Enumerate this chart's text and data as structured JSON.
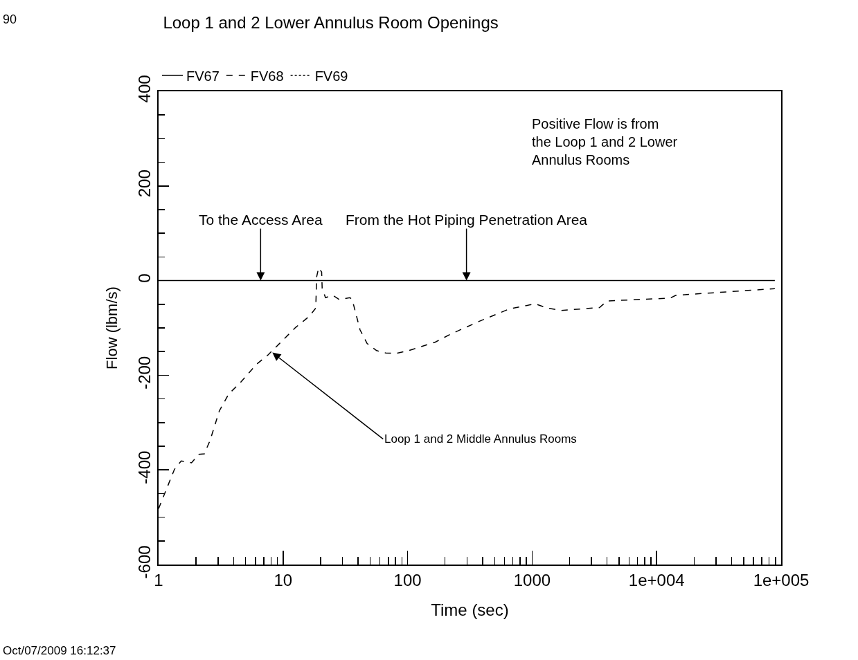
{
  "chart_data": {
    "type": "line",
    "title": "Loop 1 and 2 Lower Annulus Room Openings",
    "xlabel": "Time (sec)",
    "ylabel": "Flow (lbm/s)",
    "log": "x",
    "xlim": [
      1,
      100000
    ],
    "xticks": [
      1,
      10,
      100,
      1000,
      {
        "value": 10000,
        "label": "1e+004"
      },
      {
        "value": 100000,
        "label": "1e+005"
      }
    ],
    "ylim": [
      -600,
      400
    ],
    "yticks": [
      -600,
      -400,
      -200,
      0,
      200,
      400
    ],
    "grid": false,
    "legend": "top left",
    "marker": "none",
    "series": [
      {
        "name": "FV67",
        "color": "#000000",
        "line_style": "solid",
        "x": [
          1,
          89000
        ],
        "values": [
          0,
          0
        ]
      },
      {
        "name": "FV68",
        "color": "#000000",
        "line_style": "dashed",
        "x": [
          1,
          1.34,
          1.52,
          1.84,
          2.1,
          2.33,
          2.59,
          3.08,
          3.65,
          4.52,
          6.1,
          7.5,
          9.78,
          12.6,
          16.3,
          18.3,
          18.6,
          19.3,
          20.4,
          20.6,
          21.9,
          25,
          28.3,
          34.4,
          35.9,
          41.5,
          47.3,
          56.4,
          66.8,
          80.4,
          102,
          167,
          218,
          377,
          654,
          1062,
          1318,
          1722,
          3480,
          3990,
          12810,
          14300,
          89000
        ],
        "values": [
          -482,
          -399,
          -381,
          -385,
          -367,
          -366,
          -338,
          -275,
          -240,
          -216,
          -177,
          -158,
          -128,
          -99,
          -75,
          -58,
          8,
          27,
          18,
          -16,
          -36,
          -31,
          -40,
          -36,
          -40,
          -104,
          -133,
          -148,
          -153,
          -154,
          -148,
          -130,
          -114,
          -86,
          -60,
          -49,
          -58,
          -63,
          -57,
          -43,
          -37,
          -31,
          -17
        ]
      },
      {
        "name": "FV69",
        "color": "#000000",
        "line_style": "dotted"
      }
    ],
    "annotations": [
      "90",
      "Positive Flow is from\nthe Loop 1 and 2 Lower\nAnnulus Rooms",
      {
        "text": "To the Access Area",
        "x": 6.6,
        "y": 0
      },
      {
        "text": "From the Hot Piping Penetration Area",
        "x": 297,
        "y": 0
      },
      {
        "text": "Loop 1 and 2 Middle Annulus Rooms",
        "x": 8.2,
        "y": -152
      },
      "Oct/07/2009 16:12:37"
    ]
  }
}
